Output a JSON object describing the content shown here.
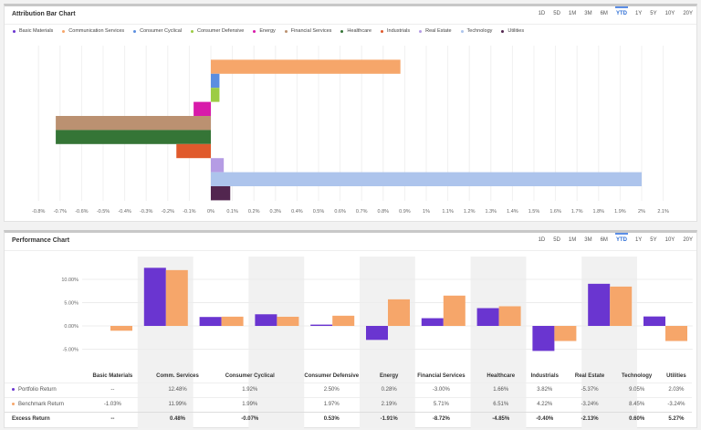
{
  "attribution": {
    "title": "Attribution Bar Chart",
    "ranges": [
      "1D",
      "5D",
      "1M",
      "3M",
      "6M",
      "YTD",
      "1Y",
      "5Y",
      "10Y",
      "20Y"
    ],
    "active_range": "YTD"
  },
  "performance": {
    "title": "Performance Chart",
    "ranges": [
      "1D",
      "5D",
      "1M",
      "3M",
      "6M",
      "YTD",
      "1Y",
      "5Y",
      "10Y",
      "20Y"
    ],
    "active_range": "YTD",
    "columns": [
      "Basic Materials",
      "Comm. Services",
      "Consumer Cyclical",
      "Consumer Defensive",
      "Energy",
      "Financial Services",
      "Healthcare",
      "Industrials",
      "Real Estate",
      "Technology",
      "Utilities"
    ],
    "rows": [
      {
        "label": "Portfolio Return",
        "color": "#6a35d0",
        "values": [
          "--",
          "12.48%",
          "1.92%",
          "2.50%",
          "0.28%",
          "-3.00%",
          "1.66%",
          "3.82%",
          "-5.37%",
          "9.05%",
          "2.03%"
        ]
      },
      {
        "label": "Benchmark Return",
        "color": "#f6a66a",
        "values": [
          "-1.03%",
          "11.99%",
          "1.99%",
          "1.97%",
          "2.19%",
          "5.71%",
          "6.51%",
          "4.22%",
          "-3.24%",
          "8.45%",
          "-3.24%"
        ]
      },
      {
        "label": "Excess Return",
        "values": [
          "--",
          "0.48%",
          "-0.07%",
          "0.53%",
          "-1.91%",
          "-8.72%",
          "-4.85%",
          "-0.40%",
          "-2.13%",
          "0.60%",
          "5.27%"
        ]
      }
    ]
  },
  "chart_data": [
    {
      "type": "bar",
      "orientation": "horizontal",
      "title": "Attribution Bar Chart",
      "legend": "top-left",
      "grid": true,
      "categories": [
        "Basic Materials",
        "Communication Services",
        "Consumer Cyclical",
        "Consumer Defensive",
        "Energy",
        "Financial Services",
        "Healthcare",
        "Industrials",
        "Real Estate",
        "Technology",
        "Utilities"
      ],
      "colors": [
        "#6a35d0",
        "#f6a66a",
        "#5b8ee0",
        "#9ccc44",
        "#d81aaa",
        "#bb9171",
        "#357536",
        "#e05a2c",
        "#b59ce4",
        "#adc4ec",
        "#52264f"
      ],
      "values": [
        0,
        0.88,
        0.04,
        0.04,
        -0.08,
        -0.72,
        -0.72,
        -0.16,
        0.06,
        2.0,
        0.09
      ],
      "xticks": [
        "-0.8%",
        "-0.7%",
        "-0.6%",
        "-0.5%",
        "-0.4%",
        "-0.3%",
        "-0.2%",
        "-0.1%",
        "0%",
        "0.1%",
        "0.2%",
        "0.3%",
        "0.4%",
        "0.5%",
        "0.6%",
        "0.7%",
        "0.8%",
        "0.9%",
        "1%",
        "1.1%",
        "1.2%",
        "1.3%",
        "1.4%",
        "1.5%",
        "1.6%",
        "1.7%",
        "1.8%",
        "1.9%",
        "2%",
        "2.1%"
      ],
      "xlim": [
        -0.8,
        2.1
      ]
    },
    {
      "type": "bar",
      "title": "Performance Chart",
      "grid": true,
      "categories": [
        "Basic Materials",
        "Comm. Services",
        "Consumer Cyclical",
        "Consumer Defensive",
        "Energy",
        "Financial Services",
        "Healthcare",
        "Industrials",
        "Real Estate",
        "Technology",
        "Utilities"
      ],
      "series": [
        {
          "name": "Portfolio Return",
          "color": "#6a35d0",
          "values": [
            null,
            12.48,
            1.92,
            2.5,
            0.28,
            -3.0,
            1.66,
            3.82,
            -5.37,
            9.05,
            2.03
          ]
        },
        {
          "name": "Benchmark Return",
          "color": "#f6a66a",
          "values": [
            -1.03,
            11.99,
            1.99,
            1.97,
            2.19,
            5.71,
            6.51,
            4.22,
            -3.24,
            8.45,
            -3.24
          ]
        }
      ],
      "yticks": [
        "10.00%",
        "5.00%",
        "0.00%",
        "-5.00%"
      ],
      "ylim": [
        -10,
        15
      ]
    }
  ]
}
